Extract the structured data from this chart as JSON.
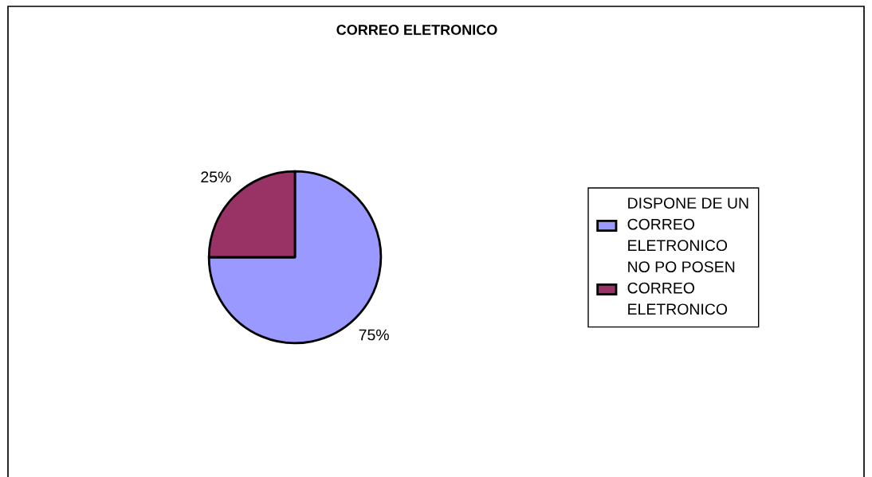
{
  "chart_data": {
    "type": "pie",
    "title": "CORREO ELETRONICO",
    "categories": [
      "DISPONE DE UN CORREO ELETRONICO",
      "NO PO POSEN CORREO ELETRONICO"
    ],
    "values": [
      75,
      25
    ],
    "colors": [
      "#9999ff",
      "#993366"
    ],
    "value_labels": [
      "75%",
      "25%"
    ],
    "legend": "right"
  }
}
